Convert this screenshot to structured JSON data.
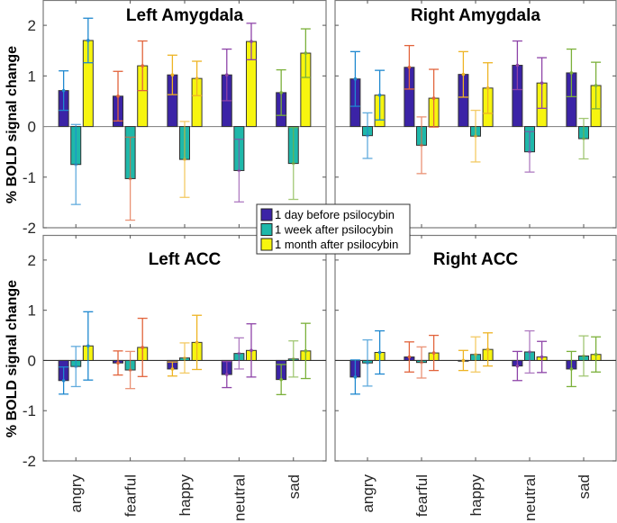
{
  "chart_data": [
    {
      "type": "bar",
      "title": "Left Amygdala",
      "xlabel": "",
      "ylabel": "% BOLD signal change",
      "ylim": [
        -2,
        2.5
      ],
      "yticks": [
        -2,
        -1,
        0,
        1,
        2
      ],
      "categories": [
        "angry",
        "fearful",
        "happy",
        "neutral",
        "sad"
      ],
      "series": [
        {
          "name": "1 day before psilocybin",
          "values": [
            0.71,
            0.6,
            1.02,
            1.02,
            0.67
          ],
          "errors": [
            0.39,
            0.49,
            0.39,
            0.51,
            0.45
          ]
        },
        {
          "name": "1 week after psilocybin",
          "values": [
            -0.75,
            -1.03,
            -0.65,
            -0.87,
            -0.73
          ],
          "errors": [
            0.79,
            0.82,
            0.75,
            0.62,
            0.71
          ]
        },
        {
          "name": "1 month after psilocybin",
          "values": [
            1.7,
            1.2,
            0.95,
            1.68,
            1.45
          ],
          "errors": [
            0.44,
            0.49,
            0.34,
            0.36,
            0.48
          ]
        }
      ]
    },
    {
      "type": "bar",
      "title": "Right Amygdala",
      "xlabel": "",
      "ylabel": "",
      "ylim": [
        -2,
        2.5
      ],
      "yticks": [
        -2,
        -1,
        0,
        1,
        2
      ],
      "categories": [
        "angry",
        "fearful",
        "happy",
        "neutral",
        "sad"
      ],
      "series": [
        {
          "name": "1 day before psilocybin",
          "values": [
            0.94,
            1.17,
            1.03,
            1.21,
            1.06
          ],
          "errors": [
            0.54,
            0.43,
            0.45,
            0.48,
            0.47
          ]
        },
        {
          "name": "1 week after psilocybin",
          "values": [
            -0.18,
            -0.37,
            -0.19,
            -0.5,
            -0.24
          ],
          "errors": [
            0.45,
            0.56,
            0.51,
            0.4,
            0.4
          ]
        },
        {
          "name": "1 month after psilocybin",
          "values": [
            0.62,
            0.56,
            0.76,
            0.86,
            0.81
          ],
          "errors": [
            0.49,
            0.57,
            0.5,
            0.5,
            0.46
          ]
        }
      ]
    },
    {
      "type": "bar",
      "title": "Left ACC",
      "xlabel": "",
      "ylabel": "% BOLD signal change",
      "ylim": [
        -2,
        2.5
      ],
      "yticks": [
        -2,
        -1,
        0,
        1,
        2
      ],
      "categories": [
        "angry",
        "fearful",
        "happy",
        "neutral",
        "sad"
      ],
      "series": [
        {
          "name": "1 day before psilocybin",
          "values": [
            -0.4,
            -0.05,
            -0.17,
            -0.28,
            -0.38
          ],
          "errors": [
            0.27,
            0.24,
            0.14,
            0.26,
            0.3
          ]
        },
        {
          "name": "1 week after psilocybin",
          "values": [
            -0.12,
            -0.19,
            0.05,
            0.14,
            0.03
          ],
          "errors": [
            0.4,
            0.37,
            0.3,
            0.31,
            0.36
          ]
        },
        {
          "name": "1 month after psilocybin",
          "values": [
            0.29,
            0.26,
            0.36,
            0.2,
            0.19
          ],
          "errors": [
            0.68,
            0.58,
            0.54,
            0.53,
            0.55
          ]
        }
      ]
    },
    {
      "type": "bar",
      "title": "Right ACC",
      "xlabel": "",
      "ylabel": "",
      "ylim": [
        -2,
        2.5
      ],
      "yticks": [
        -2,
        -1,
        0,
        1,
        2
      ],
      "categories": [
        "angry",
        "fearful",
        "happy",
        "neutral",
        "sad"
      ],
      "series": [
        {
          "name": "1 day before psilocybin",
          "values": [
            -0.33,
            0.07,
            0.0,
            -0.11,
            -0.17
          ],
          "errors": [
            0.34,
            0.3,
            0.2,
            0.29,
            0.35
          ]
        },
        {
          "name": "1 week after psilocybin",
          "values": [
            -0.05,
            -0.04,
            0.12,
            0.17,
            0.09
          ],
          "errors": [
            0.46,
            0.31,
            0.35,
            0.42,
            0.4
          ]
        },
        {
          "name": "1 month after psilocybin",
          "values": [
            0.16,
            0.15,
            0.22,
            0.07,
            0.12
          ],
          "errors": [
            0.43,
            0.35,
            0.33,
            0.31,
            0.35
          ]
        }
      ]
    }
  ],
  "legend": {
    "placement": "center",
    "items": [
      {
        "label": "1 day before psilocybin",
        "color": "#3b23a6"
      },
      {
        "label": "1 week after psilocybin",
        "color": "#1fb8aa"
      },
      {
        "label": "1 month after psilocybin",
        "color": "#f7f50f"
      }
    ]
  },
  "series_colors": [
    "#3b23a6",
    "#1fb8aa",
    "#f7f50f"
  ],
  "category_error_colors": {
    "angry": "#1f88cf",
    "fearful": "#e2643c",
    "happy": "#eeb424",
    "neutral": "#8e44a8",
    "sad": "#7bb03a"
  },
  "ylabel": "% BOLD signal change"
}
